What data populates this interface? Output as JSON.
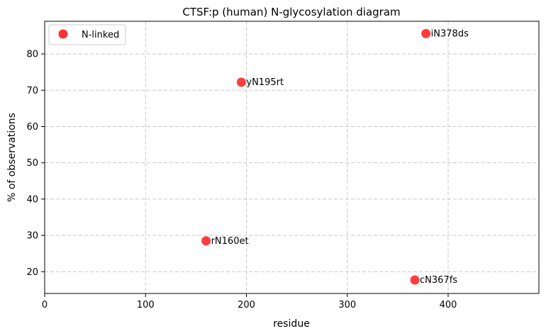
{
  "chart_data": {
    "type": "scatter",
    "title": "CTSF:p (human) N-glycosylation diagram",
    "xlabel": "residue",
    "ylabel": "% of observations",
    "xlim": [
      0,
      490
    ],
    "ylim": [
      14,
      89
    ],
    "xticks": [
      0,
      100,
      200,
      300,
      400
    ],
    "yticks": [
      20,
      30,
      40,
      50,
      60,
      70,
      80
    ],
    "grid": true,
    "legend_position": "top-left",
    "series": [
      {
        "name": "N-linked",
        "color": "#ff3333",
        "points": [
          {
            "x": 160,
            "y": 28.5,
            "label": "rN160et"
          },
          {
            "x": 195,
            "y": 72.2,
            "label": "yN195rt"
          },
          {
            "x": 367,
            "y": 17.7,
            "label": "cN367fs"
          },
          {
            "x": 378,
            "y": 85.6,
            "label": "iN378ds"
          }
        ]
      }
    ]
  }
}
